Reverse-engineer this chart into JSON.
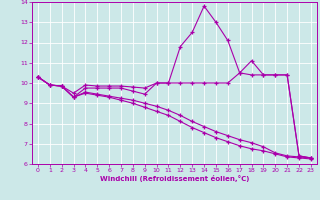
{
  "title": "",
  "xlabel": "Windchill (Refroidissement éolien,°C)",
  "ylabel": "",
  "background_color": "#cce8e8",
  "line_color": "#aa00aa",
  "grid_color": "#ffffff",
  "xlim": [
    -0.5,
    23.5
  ],
  "ylim": [
    6,
    14
  ],
  "xticks": [
    0,
    1,
    2,
    3,
    4,
    5,
    6,
    7,
    8,
    9,
    10,
    11,
    12,
    13,
    14,
    15,
    16,
    17,
    18,
    19,
    20,
    21,
    22,
    23
  ],
  "yticks": [
    6,
    7,
    8,
    9,
    10,
    11,
    12,
    13,
    14
  ],
  "series": {
    "line1_x": [
      0,
      1,
      2,
      3,
      4,
      5,
      6,
      7,
      8,
      9,
      10,
      11,
      12,
      13,
      14,
      15,
      16,
      17,
      18,
      19,
      20,
      21,
      22,
      23
    ],
    "line1_y": [
      10.3,
      9.9,
      9.85,
      9.3,
      9.75,
      9.75,
      9.75,
      9.75,
      9.6,
      9.45,
      10.0,
      10.0,
      11.8,
      12.5,
      13.8,
      13.0,
      12.1,
      10.5,
      11.1,
      10.4,
      10.4,
      10.4,
      6.4,
      6.3
    ],
    "line2_x": [
      0,
      1,
      2,
      3,
      4,
      5,
      6,
      7,
      8,
      9,
      10,
      11,
      12,
      13,
      14,
      15,
      16,
      17,
      18,
      19,
      20,
      21,
      22,
      23
    ],
    "line2_y": [
      10.3,
      9.9,
      9.85,
      9.5,
      9.9,
      9.85,
      9.85,
      9.85,
      9.8,
      9.75,
      10.0,
      10.0,
      10.0,
      10.0,
      10.0,
      10.0,
      10.0,
      10.5,
      10.4,
      10.4,
      10.4,
      10.4,
      6.4,
      6.3
    ],
    "line3_x": [
      0,
      1,
      2,
      3,
      4,
      5,
      6,
      7,
      8,
      9,
      10,
      11,
      12,
      13,
      14,
      15,
      16,
      17,
      18,
      19,
      20,
      21,
      22,
      23
    ],
    "line3_y": [
      10.3,
      9.9,
      9.85,
      9.3,
      9.55,
      9.45,
      9.35,
      9.25,
      9.15,
      9.0,
      8.85,
      8.65,
      8.4,
      8.1,
      7.85,
      7.6,
      7.4,
      7.2,
      7.05,
      6.85,
      6.55,
      6.4,
      6.35,
      6.3
    ],
    "line4_x": [
      0,
      1,
      2,
      3,
      4,
      5,
      6,
      7,
      8,
      9,
      10,
      11,
      12,
      13,
      14,
      15,
      16,
      17,
      18,
      19,
      20,
      21,
      22,
      23
    ],
    "line4_y": [
      10.3,
      9.9,
      9.85,
      9.3,
      9.5,
      9.4,
      9.3,
      9.15,
      9.0,
      8.8,
      8.6,
      8.4,
      8.1,
      7.8,
      7.55,
      7.3,
      7.1,
      6.9,
      6.75,
      6.65,
      6.5,
      6.35,
      6.3,
      6.25
    ]
  }
}
